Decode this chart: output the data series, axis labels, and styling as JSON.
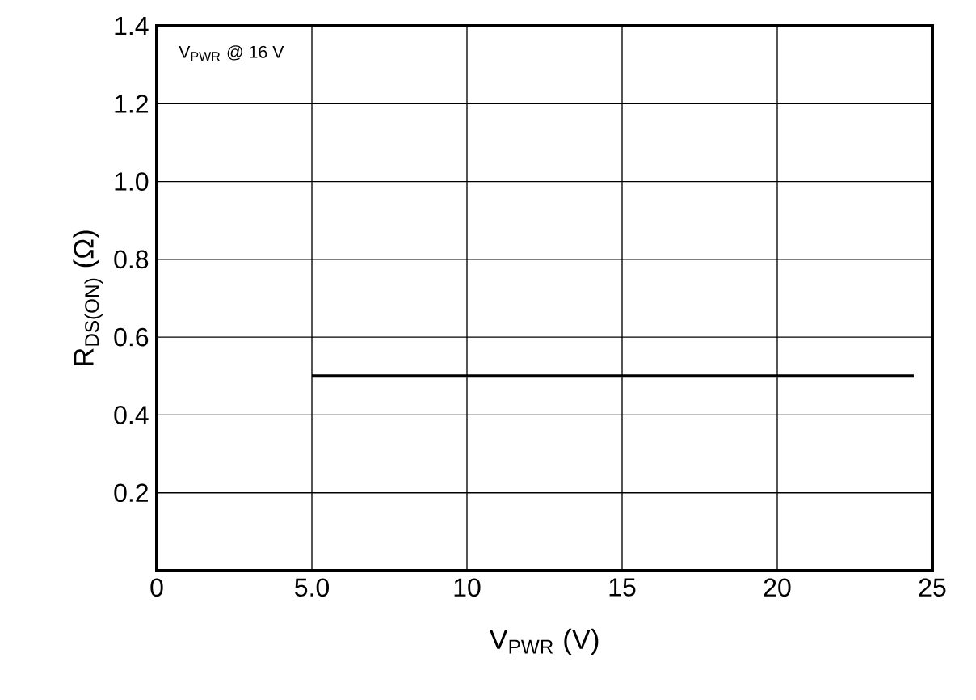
{
  "chart_data": {
    "type": "line",
    "xlabel": "V$_{PWR}$ (V)",
    "ylabel": "R$_{DS(ON)}$ (Ω)",
    "annotations": [
      "V$_{PWR}$ @ 16 V"
    ],
    "series": [
      {
        "color": "#000000",
        "x": [
          5,
          24.4
        ],
        "values": [
          0.5,
          0.5
        ]
      }
    ],
    "xlim": [
      0,
      25
    ],
    "xticks": [
      0,
      {
        "value": 5,
        "label": "5.0"
      },
      10,
      15,
      20,
      25
    ],
    "ylim": [
      0,
      1.4
    ],
    "yticks": [
      {
        "value": 0.2,
        "label": "0.2"
      },
      {
        "value": 0.4,
        "label": "0.4"
      },
      {
        "value": 0.6,
        "label": "0.6"
      },
      {
        "value": 0.8,
        "label": "0.8"
      },
      {
        "value": 1.0,
        "label": "1.0"
      },
      {
        "value": 1.2,
        "label": "1.2"
      },
      {
        "value": 1.4,
        "label": "1.4"
      }
    ],
    "grid": true,
    "marker": "none",
    "line_style": "solid"
  }
}
